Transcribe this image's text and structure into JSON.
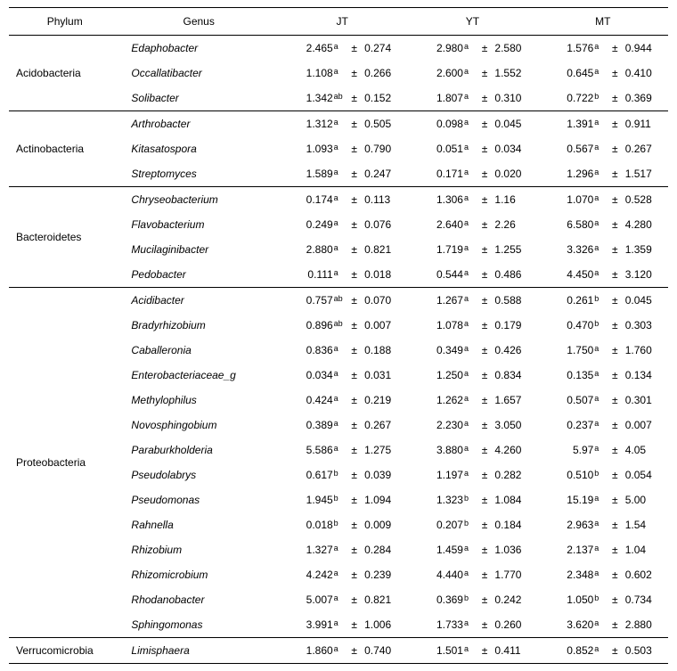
{
  "columns": {
    "phylum": "Phylum",
    "genus": "Genus",
    "jt": "JT",
    "yt": "YT",
    "mt": "MT"
  },
  "plusminus": "±",
  "groups": [
    {
      "phylum": "Acidobacteria",
      "rows": [
        {
          "genus": "Edaphobacter",
          "jt": {
            "v": "2.465",
            "s": "a",
            "e": "0.274"
          },
          "yt": {
            "v": "2.980",
            "s": "a",
            "e": "2.580"
          },
          "mt": {
            "v": "1.576",
            "s": "a",
            "e": "0.944"
          }
        },
        {
          "genus": "Occallatibacter",
          "jt": {
            "v": "1.108",
            "s": "a",
            "e": "0.266"
          },
          "yt": {
            "v": "2.600",
            "s": "a",
            "e": "1.552"
          },
          "mt": {
            "v": "0.645",
            "s": "a",
            "e": "0.410"
          }
        },
        {
          "genus": "Solibacter",
          "jt": {
            "v": "1.342",
            "s": "ab",
            "e": "0.152"
          },
          "yt": {
            "v": "1.807",
            "s": "a",
            "e": "0.310"
          },
          "mt": {
            "v": "0.722",
            "s": "b",
            "e": "0.369"
          }
        }
      ]
    },
    {
      "phylum": "Actinobacteria",
      "rows": [
        {
          "genus": "Arthrobacter",
          "jt": {
            "v": "1.312",
            "s": "a",
            "e": "0.505"
          },
          "yt": {
            "v": "0.098",
            "s": "a",
            "e": "0.045"
          },
          "mt": {
            "v": "1.391",
            "s": "a",
            "e": "0.911"
          }
        },
        {
          "genus": "Kitasatospora",
          "jt": {
            "v": "1.093",
            "s": "a",
            "e": "0.790"
          },
          "yt": {
            "v": "0.051",
            "s": "a",
            "e": "0.034"
          },
          "mt": {
            "v": "0.567",
            "s": "a",
            "e": "0.267"
          }
        },
        {
          "genus": "Streptomyces",
          "jt": {
            "v": "1.589",
            "s": "a",
            "e": "0.247"
          },
          "yt": {
            "v": "0.171",
            "s": "a",
            "e": "0.020"
          },
          "mt": {
            "v": "1.296",
            "s": "a",
            "e": "1.517"
          }
        }
      ]
    },
    {
      "phylum": "Bacteroidetes",
      "rows": [
        {
          "genus": "Chryseobacterium",
          "jt": {
            "v": "0.174",
            "s": "a",
            "e": "0.113"
          },
          "yt": {
            "v": "1.306",
            "s": "a",
            "e": "1.16"
          },
          "mt": {
            "v": "1.070",
            "s": "a",
            "e": "0.528"
          }
        },
        {
          "genus": "Flavobacterium",
          "jt": {
            "v": "0.249",
            "s": "a",
            "e": "0.076"
          },
          "yt": {
            "v": "2.640",
            "s": "a",
            "e": "2.26"
          },
          "mt": {
            "v": "6.580",
            "s": "a",
            "e": "4.280"
          }
        },
        {
          "genus": "Mucilaginibacter",
          "jt": {
            "v": "2.880",
            "s": "a",
            "e": "0.821"
          },
          "yt": {
            "v": "1.719",
            "s": "a",
            "e": "1.255"
          },
          "mt": {
            "v": "3.326",
            "s": "a",
            "e": "1.359"
          }
        },
        {
          "genus": "Pedobacter",
          "jt": {
            "v": "0.111",
            "s": "a",
            "e": "0.018"
          },
          "yt": {
            "v": "0.544",
            "s": "a",
            "e": "0.486"
          },
          "mt": {
            "v": "4.450",
            "s": "a",
            "e": "3.120"
          }
        }
      ]
    },
    {
      "phylum": "Proteobacteria",
      "rows": [
        {
          "genus": "Acidibacter",
          "jt": {
            "v": "0.757",
            "s": "ab",
            "e": "0.070"
          },
          "yt": {
            "v": "1.267",
            "s": "a",
            "e": "0.588"
          },
          "mt": {
            "v": "0.261",
            "s": "b",
            "e": "0.045"
          }
        },
        {
          "genus": "Bradyrhizobium",
          "jt": {
            "v": "0.896",
            "s": "ab",
            "e": "0.007"
          },
          "yt": {
            "v": "1.078",
            "s": "a",
            "e": "0.179"
          },
          "mt": {
            "v": "0.470",
            "s": "b",
            "e": "0.303"
          }
        },
        {
          "genus": "Caballeronia",
          "jt": {
            "v": "0.836",
            "s": "a",
            "e": "0.188"
          },
          "yt": {
            "v": "0.349",
            "s": "a",
            "e": "0.426"
          },
          "mt": {
            "v": "1.750",
            "s": "a",
            "e": "1.760"
          }
        },
        {
          "genus": "Enterobacteriaceae_g",
          "jt": {
            "v": "0.034",
            "s": "a",
            "e": "0.031"
          },
          "yt": {
            "v": "1.250",
            "s": "a",
            "e": "0.834"
          },
          "mt": {
            "v": "0.135",
            "s": "a",
            "e": "0.134"
          }
        },
        {
          "genus": "Methylophilus",
          "jt": {
            "v": "0.424",
            "s": "a",
            "e": "0.219"
          },
          "yt": {
            "v": "1.262",
            "s": "a",
            "e": "1.657"
          },
          "mt": {
            "v": "0.507",
            "s": "a",
            "e": "0.301"
          }
        },
        {
          "genus": "Novosphingobium",
          "jt": {
            "v": "0.389",
            "s": "a",
            "e": "0.267"
          },
          "yt": {
            "v": "2.230",
            "s": "a",
            "e": "3.050"
          },
          "mt": {
            "v": "0.237",
            "s": "a",
            "e": "0.007"
          }
        },
        {
          "genus": "Paraburkholderia",
          "jt": {
            "v": "5.586",
            "s": "a",
            "e": "1.275"
          },
          "yt": {
            "v": "3.880",
            "s": "a",
            "e": "4.260"
          },
          "mt": {
            "v": "5.97",
            "s": "a",
            "e": "4.05"
          }
        },
        {
          "genus": "Pseudolabrys",
          "jt": {
            "v": "0.617",
            "s": "b",
            "e": "0.039"
          },
          "yt": {
            "v": "1.197",
            "s": "a",
            "e": "0.282"
          },
          "mt": {
            "v": "0.510",
            "s": "b",
            "e": "0.054"
          }
        },
        {
          "genus": "Pseudomonas",
          "jt": {
            "v": "1.945",
            "s": "b",
            "e": "1.094"
          },
          "yt": {
            "v": "1.323",
            "s": "b",
            "e": "1.084"
          },
          "mt": {
            "v": "15.19",
            "s": "a",
            "e": "5.00"
          }
        },
        {
          "genus": "Rahnella",
          "jt": {
            "v": "0.018",
            "s": "b",
            "e": "0.009"
          },
          "yt": {
            "v": "0.207",
            "s": "b",
            "e": "0.184"
          },
          "mt": {
            "v": "2.963",
            "s": "a",
            "e": "1.54"
          }
        },
        {
          "genus": "Rhizobium",
          "jt": {
            "v": "1.327",
            "s": "a",
            "e": "0.284"
          },
          "yt": {
            "v": "1.459",
            "s": "a",
            "e": "1.036"
          },
          "mt": {
            "v": "2.137",
            "s": "a",
            "e": "1.04"
          }
        },
        {
          "genus": "Rhizomicrobium",
          "jt": {
            "v": "4.242",
            "s": "a",
            "e": "0.239"
          },
          "yt": {
            "v": "4.440",
            "s": "a",
            "e": "1.770"
          },
          "mt": {
            "v": "2.348",
            "s": "a",
            "e": "0.602"
          }
        },
        {
          "genus": "Rhodanobacter",
          "jt": {
            "v": "5.007",
            "s": "a",
            "e": "0.821"
          },
          "yt": {
            "v": "0.369",
            "s": "b",
            "e": "0.242"
          },
          "mt": {
            "v": "1.050",
            "s": "b",
            "e": "0.734"
          }
        },
        {
          "genus": "Sphingomonas",
          "jt": {
            "v": "3.991",
            "s": "a",
            "e": "1.006"
          },
          "yt": {
            "v": "1.733",
            "s": "a",
            "e": "0.260"
          },
          "mt": {
            "v": "3.620",
            "s": "a",
            "e": "2.880"
          }
        }
      ]
    },
    {
      "phylum": "Verrucomicrobia",
      "rows": [
        {
          "genus": "Limisphaera",
          "jt": {
            "v": "1.860",
            "s": "a",
            "e": "0.740"
          },
          "yt": {
            "v": "1.501",
            "s": "a",
            "e": "0.411"
          },
          "mt": {
            "v": "0.852",
            "s": "a",
            "e": "0.503"
          }
        }
      ]
    }
  ]
}
